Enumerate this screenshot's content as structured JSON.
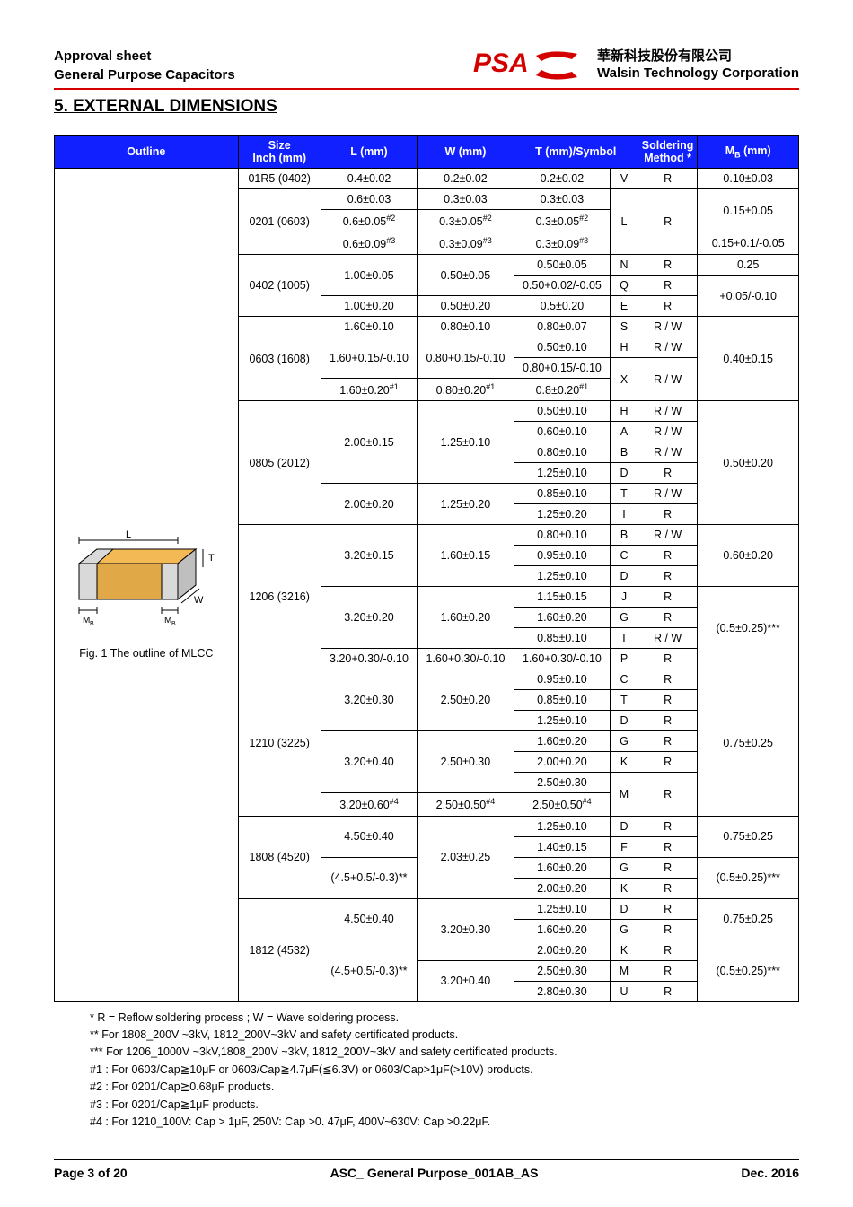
{
  "header": {
    "line1": "Approval sheet",
    "line2": "General Purpose Capacitors",
    "company_cn": "華新科技股份有限公司",
    "company_en": "Walsin Technology Corporation"
  },
  "section_title": "5. EXTERNAL DIMENSIONS",
  "columns": {
    "outline": "Outline",
    "size": "Size\nInch (mm)",
    "L": "L (mm)",
    "W": "W (mm)",
    "T": "T (mm)/Symbol",
    "method": "Soldering Method *",
    "MB": "M",
    "MB_sub": "B",
    "MB_unit": " (mm)"
  },
  "fig_caption": "Fig. 1 The outline of MLCC",
  "fig_labels": {
    "L": "L",
    "T": "T",
    "W": "W",
    "MB1": "M",
    "MB2": "M",
    "B": "B"
  },
  "rows": [
    {
      "size": "01R5 (0402)",
      "L": "0.4±0.02",
      "W": "0.2±0.02",
      "T": "0.2±0.02",
      "sym": "V",
      "meth": "R",
      "MB": "0.10±0.03"
    },
    {
      "size": "0201 (0603)",
      "size_rs": 3,
      "L": "0.6±0.03",
      "W": "0.3±0.03",
      "T": "0.3±0.03",
      "sym": "L",
      "sym_rs": 3,
      "meth": "R",
      "meth_rs": 3,
      "MB": "0.15±0.05",
      "MB_rs": 2
    },
    {
      "L": "0.6±0.05",
      "L_sup": "#2",
      "W": "0.3±0.05",
      "W_sup": "#2",
      "T": "0.3±0.05",
      "T_sup": "#2"
    },
    {
      "L": "0.6±0.09",
      "L_sup": "#3",
      "W": "0.3±0.09",
      "W_sup": "#3",
      "T": "0.3±0.09",
      "T_sup": "#3",
      "MB": "0.15+0.1/-0.05"
    },
    {
      "size": "0402 (1005)",
      "size_rs": 3,
      "L": "1.00±0.05",
      "L_rs": 2,
      "W": "0.50±0.05",
      "W_rs": 2,
      "T": "0.50±0.05",
      "sym": "N",
      "meth": "R",
      "MB": "0.25"
    },
    {
      "T": "0.50+0.02/-0.05",
      "sym": "Q",
      "meth": "R",
      "MB": "+0.05/-0.10",
      "MB_rs": 2
    },
    {
      "L": "1.00±0.20",
      "W": "0.50±0.20",
      "T": "0.5±0.20",
      "sym": "E",
      "meth": "R"
    },
    {
      "size": "0603 (1608)",
      "size_rs": 4,
      "L": "1.60±0.10",
      "W": "0.80±0.10",
      "T": "0.80±0.07",
      "sym": "S",
      "meth": "R / W",
      "MB": "0.40±0.15",
      "MB_rs": 4
    },
    {
      "L": "1.60+0.15/-0.10",
      "L_rs": 2,
      "W": "0.80+0.15/-0.10",
      "W_rs": 2,
      "T": "0.50±0.10",
      "sym": "H",
      "meth": "R / W"
    },
    {
      "T": "0.80+0.15/-0.10",
      "sym": "X",
      "sym_rs": 2,
      "meth": "R / W",
      "meth_rs": 2
    },
    {
      "L": "1.60±0.20",
      "L_sup": "#1",
      "W": "0.80±0.20",
      "W_sup": "#1",
      "T": "0.8±0.20",
      "T_sup": "#1"
    },
    {
      "size": "0805 (2012)",
      "size_rs": 6,
      "L": "2.00±0.15",
      "L_rs": 4,
      "W": "1.25±0.10",
      "W_rs": 4,
      "T": "0.50±0.10",
      "sym": "H",
      "meth": "R / W",
      "MB": "0.50±0.20",
      "MB_rs": 6
    },
    {
      "T": "0.60±0.10",
      "sym": "A",
      "meth": "R / W"
    },
    {
      "T": "0.80±0.10",
      "sym": "B",
      "meth": "R / W"
    },
    {
      "T": "1.25±0.10",
      "sym": "D",
      "meth": "R"
    },
    {
      "L": "2.00±0.20",
      "L_rs": 2,
      "W": "1.25±0.20",
      "W_rs": 2,
      "T": "0.85±0.10",
      "sym": "T",
      "meth": "R / W"
    },
    {
      "T": "1.25±0.20",
      "sym": "I",
      "meth": "R"
    },
    {
      "size": "1206 (3216)",
      "size_rs": 7,
      "L": "3.20±0.15",
      "L_rs": 3,
      "W": "1.60±0.15",
      "W_rs": 3,
      "T": "0.80±0.10",
      "sym": "B",
      "meth": "R / W",
      "MB": "0.60±0.20",
      "MB_rs": 3
    },
    {
      "T": "0.95±0.10",
      "sym": "C",
      "meth": "R"
    },
    {
      "T": "1.25±0.10",
      "sym": "D",
      "meth": "R"
    },
    {
      "L": "3.20±0.20",
      "L_rs": 3,
      "W": "1.60±0.20",
      "W_rs": 3,
      "T": "1.15±0.15",
      "sym": "J",
      "meth": "R",
      "MB": "(0.5±0.25)***",
      "MB_rs": 4
    },
    {
      "T": "1.60±0.20",
      "sym": "G",
      "meth": "R"
    },
    {
      "T": "0.85±0.10",
      "sym": "T",
      "meth": "R / W"
    },
    {
      "L": "3.20+0.30/-0.10",
      "W": "1.60+0.30/-0.10",
      "T": "1.60+0.30/-0.10",
      "sym": "P",
      "meth": "R"
    },
    {
      "size": "1210 (3225)",
      "size_rs": 7,
      "L": "3.20±0.30",
      "L_rs": 3,
      "W": "2.50±0.20",
      "W_rs": 3,
      "T": "0.95±0.10",
      "sym": "C",
      "meth": "R",
      "MB": "0.75±0.25",
      "MB_rs": 7
    },
    {
      "T": "0.85±0.10",
      "sym": "T",
      "meth": "R"
    },
    {
      "T": "1.25±0.10",
      "sym": "D",
      "meth": "R"
    },
    {
      "L": "3.20±0.40",
      "L_rs": 3,
      "W": "2.50±0.30",
      "W_rs": 3,
      "T": "1.60±0.20",
      "sym": "G",
      "meth": "R"
    },
    {
      "T": "2.00±0.20",
      "sym": "K",
      "meth": "R"
    },
    {
      "T": "2.50±0.30",
      "sym": "M",
      "sym_rs": 2,
      "meth": "R",
      "meth_rs": 2
    },
    {
      "L": "3.20±0.60",
      "L_sup": "#4",
      "W": "2.50±0.50",
      "W_sup": "#4",
      "T": "2.50±0.50",
      "T_sup": "#4"
    },
    {
      "size": "1808 (4520)",
      "size_rs": 4,
      "L": "4.50±0.40",
      "L_rs": 2,
      "W": "2.03±0.25",
      "W_rs": 4,
      "T": "1.25±0.10",
      "sym": "D",
      "meth": "R",
      "MB": "0.75±0.25",
      "MB_rs": 2
    },
    {
      "T": "1.40±0.15",
      "sym": "F",
      "meth": "R"
    },
    {
      "L": "(4.5+0.5/-0.3)**",
      "L_rs": 2,
      "T": "1.60±0.20",
      "sym": "G",
      "meth": "R",
      "MB": "(0.5±0.25)***",
      "MB_rs": 2
    },
    {
      "T": "2.00±0.20",
      "sym": "K",
      "meth": "R"
    },
    {
      "size": "1812 (4532)",
      "size_rs": 5,
      "L": "4.50±0.40",
      "L_rs": 2,
      "W": "3.20±0.30",
      "W_rs": 3,
      "T": "1.25±0.10",
      "sym": "D",
      "meth": "R",
      "MB": "0.75±0.25",
      "MB_rs": 2
    },
    {
      "T": "1.60±0.20",
      "sym": "G",
      "meth": "R"
    },
    {
      "L": "(4.5+0.5/-0.3)**",
      "L_rs": 3,
      "T": "2.00±0.20",
      "sym": "K",
      "meth": "R",
      "MB": "(0.5±0.25)***",
      "MB_rs": 3
    },
    {
      "W": "3.20±0.40",
      "W_rs": 2,
      "T": "2.50±0.30",
      "sym": "M",
      "meth": "R"
    },
    {
      "T": "2.80±0.30",
      "sym": "U",
      "meth": "R"
    }
  ],
  "notes": [
    "* R = Reflow soldering process ; W = Wave soldering process.",
    "** For 1808_200V ~3kV, 1812_200V~3kV and safety certificated products.",
    "*** For 1206_1000V ~3kV,1808_200V ~3kV, 1812_200V~3kV and safety certificated products.",
    "#1 : For 0603/Cap≧10μF or 0603/Cap≧4.7μF(≦6.3V) or 0603/Cap>1μF(>10V) products.",
    "#2 : For 0201/Cap≧0.68μF products.",
    "#3 : For 0201/Cap≧1μF products.",
    "#4 : For 1210_100V: Cap > 1μF, 250V: Cap >0. 47μF, 400V~630V: Cap >0.22μF."
  ],
  "footer": {
    "page": "Page 3 of 20",
    "doc": "ASC_ General Purpose_001AB_AS",
    "date": "Dec. 2016"
  },
  "colors": {
    "header_bg": "#1020ff",
    "cap_top": "#f3b955",
    "cap_side": "#e0a847",
    "term": "#d9d9d9",
    "term_side": "#bfbfbf"
  }
}
